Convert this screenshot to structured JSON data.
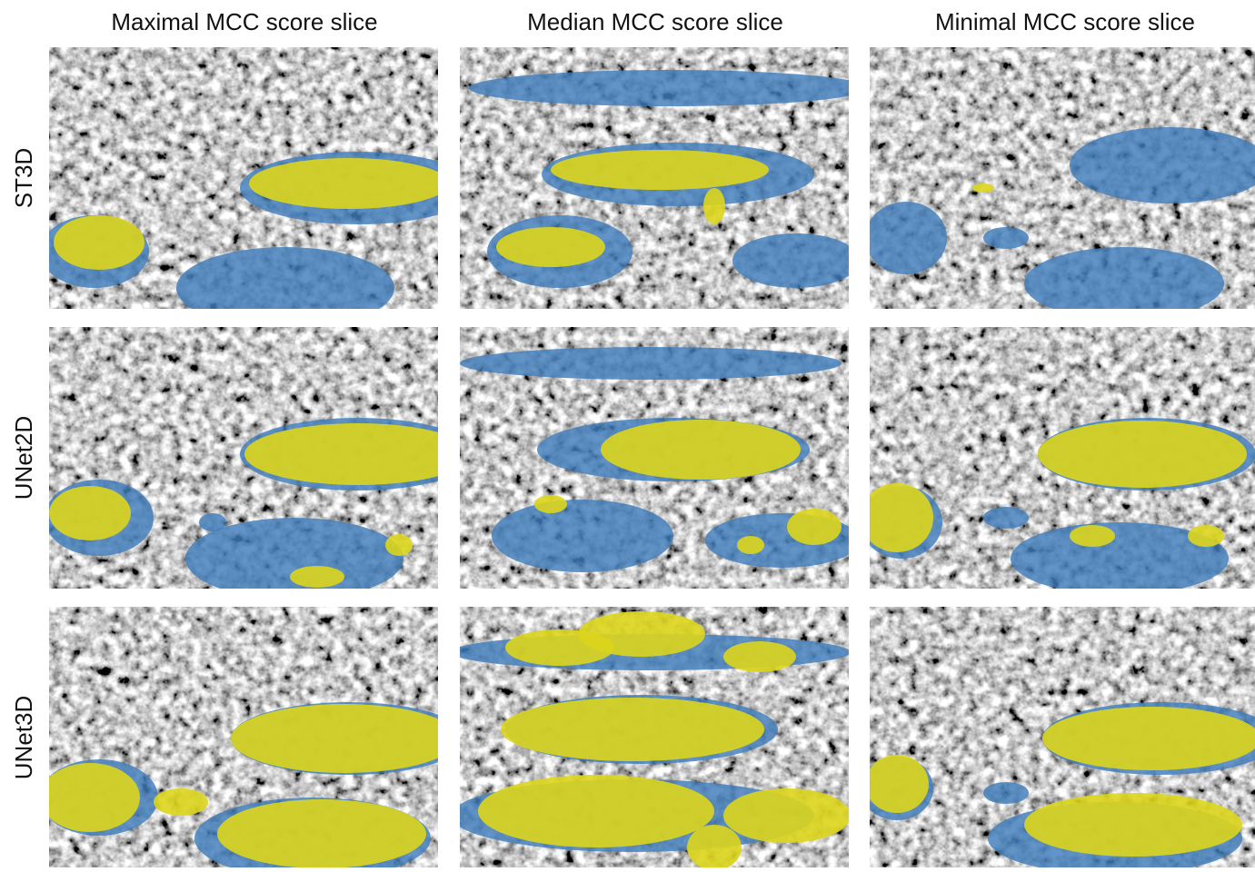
{
  "column_titles": [
    "Maximal MCC score slice",
    "Median MCC score slice",
    "Minimal MCC score slice"
  ],
  "row_labels": [
    "ST3D",
    "UNet2D",
    "UNet3D"
  ]
}
